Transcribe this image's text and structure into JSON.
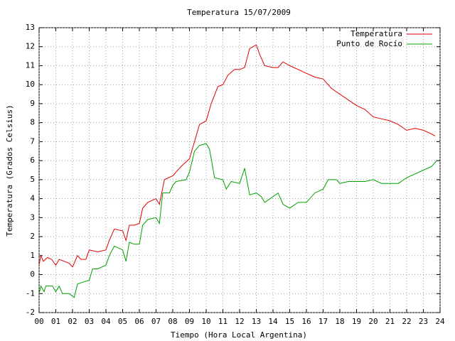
{
  "chart_data": {
    "type": "line",
    "title": "Temperatura 15/07/2009",
    "x_label": "Tiempo (Hora Local Argentina)",
    "y_label": "Temperatura (Grados Celsius)",
    "xlim": [
      0,
      24
    ],
    "ylim": [
      -2,
      13
    ],
    "xticks": [
      {
        "value": 0,
        "label": "00"
      },
      {
        "value": 1,
        "label": "01"
      },
      {
        "value": 2,
        "label": "02"
      },
      {
        "value": 3,
        "label": "03"
      },
      {
        "value": 4,
        "label": "04"
      },
      {
        "value": 5,
        "label": "05"
      },
      {
        "value": 6,
        "label": "06"
      },
      {
        "value": 7,
        "label": "07"
      },
      {
        "value": 8,
        "label": "08"
      },
      {
        "value": 9,
        "label": "09"
      },
      10,
      11,
      12,
      13,
      14,
      15,
      16,
      17,
      18,
      19,
      20,
      21,
      22,
      23,
      24
    ],
    "yticks": [
      -2,
      -1,
      0,
      1,
      2,
      3,
      4,
      5,
      6,
      7,
      8,
      9,
      10,
      11,
      12,
      13
    ],
    "grid": true,
    "legend": "top-right",
    "series": [
      {
        "name": "Temperatura",
        "color": "#e00000",
        "x": [
          0,
          0.1,
          0.25,
          0.5,
          0.75,
          1.0,
          1.2,
          1.5,
          1.8,
          2.0,
          2.3,
          2.5,
          2.8,
          3.0,
          3.5,
          4.0,
          4.2,
          4.5,
          5.0,
          5.2,
          5.4,
          5.7,
          6.0,
          6.2,
          6.5,
          7.0,
          7.2,
          7.5,
          8.0,
          8.2,
          8.5,
          9.0,
          9.3,
          9.6,
          10.0,
          10.3,
          10.7,
          11.0,
          11.3,
          11.7,
          12.0,
          12.3,
          12.6,
          13.0,
          13.2,
          13.5,
          14.0,
          14.3,
          14.6,
          15.0,
          15.5,
          16.0,
          16.5,
          17.0,
          17.5,
          18.0,
          18.5,
          19.0,
          19.5,
          20.0,
          20.5,
          21.0,
          21.5,
          22.0,
          22.5,
          23.0,
          23.5,
          23.7
        ],
        "values": [
          0.5,
          1.0,
          0.7,
          0.9,
          0.8,
          0.5,
          0.8,
          0.7,
          0.6,
          0.4,
          1.0,
          0.8,
          0.8,
          1.3,
          1.2,
          1.3,
          1.8,
          2.4,
          2.3,
          1.8,
          2.6,
          2.6,
          2.7,
          3.5,
          3.8,
          4.0,
          3.7,
          5.0,
          5.2,
          5.4,
          5.7,
          6.1,
          7.0,
          7.9,
          8.1,
          9.0,
          9.9,
          10.0,
          10.5,
          10.8,
          10.8,
          10.9,
          11.9,
          12.1,
          11.6,
          11.0,
          10.9,
          10.9,
          11.2,
          11.0,
          10.8,
          10.6,
          10.4,
          10.3,
          9.8,
          9.5,
          9.2,
          8.9,
          8.7,
          8.3,
          8.2,
          8.1,
          7.9,
          7.6,
          7.7,
          7.6,
          7.4,
          7.3
        ]
      },
      {
        "name": "Punto de Rocío",
        "color": "#00a000",
        "x": [
          0,
          0.1,
          0.3,
          0.4,
          0.8,
          1.0,
          1.2,
          1.4,
          1.8,
          2.1,
          2.3,
          2.6,
          3.0,
          3.2,
          3.5,
          4.0,
          4.2,
          4.5,
          5.0,
          5.2,
          5.4,
          5.7,
          6.0,
          6.2,
          6.5,
          7.0,
          7.2,
          7.4,
          7.8,
          8.0,
          8.2,
          8.8,
          9.0,
          9.3,
          9.6,
          10.0,
          10.2,
          10.5,
          11.0,
          11.2,
          11.5,
          12.0,
          12.3,
          12.6,
          13.0,
          13.3,
          13.5,
          14.0,
          14.3,
          14.6,
          15.0,
          15.5,
          16.0,
          16.5,
          17.0,
          17.3,
          17.8,
          18.0,
          18.5,
          19.0,
          19.5,
          20.0,
          20.5,
          21.0,
          21.5,
          22.0,
          22.5,
          23.0,
          23.5,
          23.8
        ],
        "values": [
          -1.0,
          -0.6,
          -0.9,
          -0.6,
          -0.6,
          -0.9,
          -0.6,
          -1.0,
          -1.0,
          -1.2,
          -0.5,
          -0.4,
          -0.3,
          0.3,
          0.3,
          0.5,
          1.0,
          1.5,
          1.3,
          0.7,
          1.7,
          1.6,
          1.6,
          2.6,
          2.9,
          3.0,
          2.7,
          4.3,
          4.3,
          4.7,
          4.9,
          5.0,
          5.4,
          6.5,
          6.8,
          6.9,
          6.6,
          5.1,
          5.0,
          4.5,
          4.9,
          4.8,
          5.6,
          4.2,
          4.3,
          4.1,
          3.8,
          4.1,
          4.3,
          3.7,
          3.5,
          3.8,
          3.8,
          4.3,
          4.5,
          5.0,
          5.0,
          4.8,
          4.9,
          4.9,
          4.9,
          5.0,
          4.8,
          4.8,
          4.8,
          5.1,
          5.3,
          5.5,
          5.7,
          6.0
        ]
      }
    ]
  }
}
